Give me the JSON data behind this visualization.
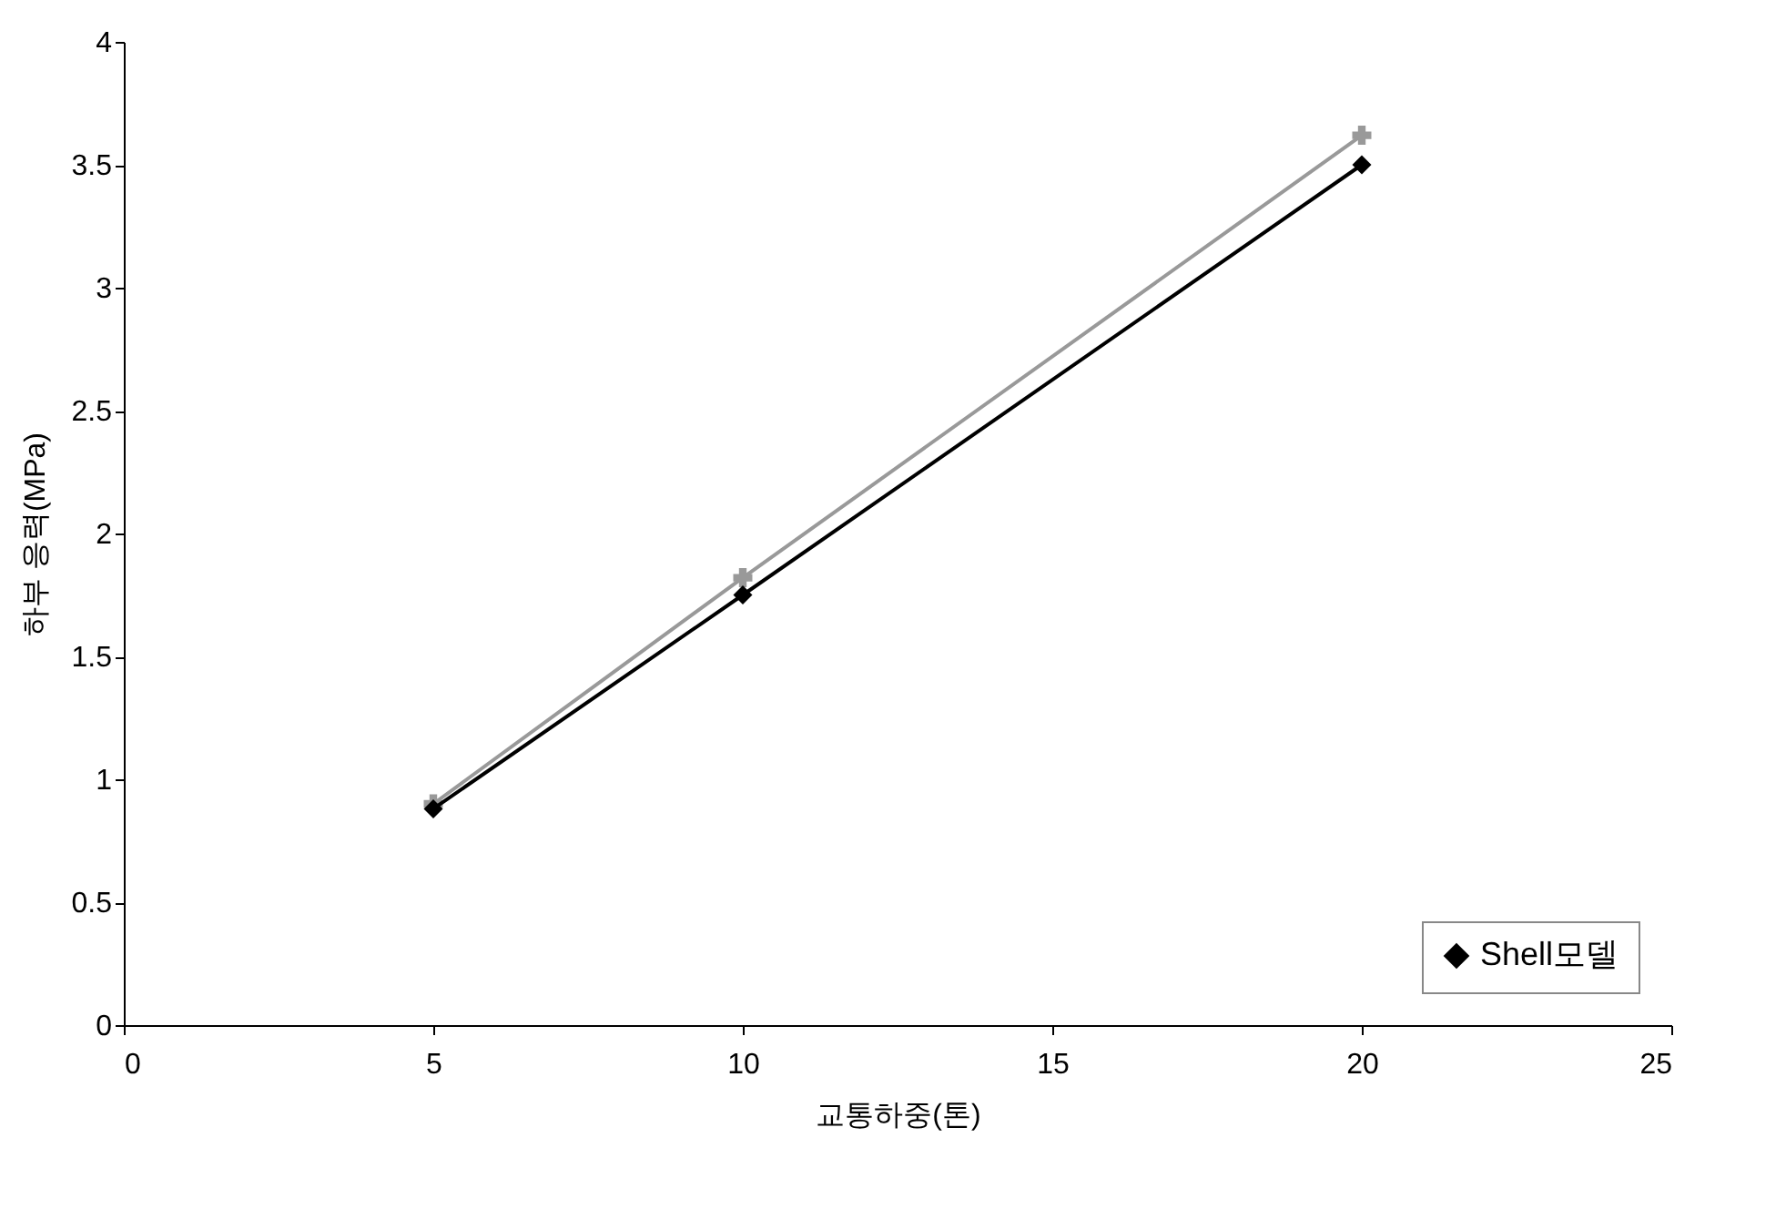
{
  "chart_data": {
    "type": "line",
    "xlabel": "교통하중(톤)",
    "ylabel": "하부 응력(MPa)",
    "x": [
      5,
      10,
      20
    ],
    "series": [
      {
        "name": "Shell모델",
        "color": "#000000",
        "marker": "diamond",
        "values": [
          0.88,
          1.75,
          3.5
        ]
      },
      {
        "color": "#999999",
        "marker": "cross",
        "values": [
          0.9,
          1.82,
          3.62
        ]
      }
    ],
    "xlim": [
      0,
      25
    ],
    "xticks": [
      0,
      5,
      10,
      15,
      20,
      25
    ],
    "ylim": [
      0,
      4
    ],
    "yticks": [
      0,
      0.5,
      1,
      1.5,
      2,
      2.5,
      3,
      3.5,
      4
    ],
    "grid": false,
    "legend": "bottom right"
  }
}
